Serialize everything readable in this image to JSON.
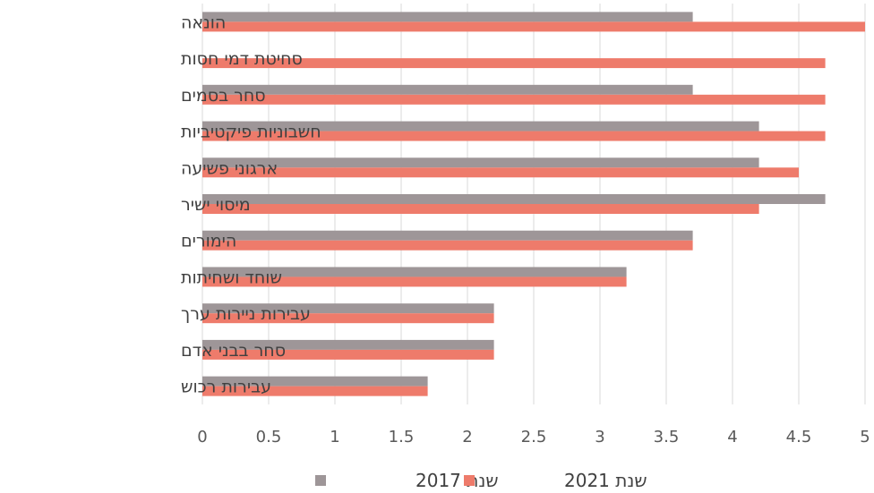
{
  "chart_data": {
    "type": "bar",
    "orientation": "horizontal",
    "categories": [
      "הונאה",
      "סחיטת דמי חסות",
      "סחר בסמים",
      "חשבוניות פיקטיביות",
      "ארגוני פשיעה",
      "מיסוי ישיר",
      "הימורים",
      "שוחד ושחיתות",
      "עבירות ניירות ערך",
      "סחר בבני אדם",
      "עבירות רכוש"
    ],
    "series": [
      {
        "name": "שנת 2017",
        "color": "#9e9698",
        "values": [
          3.7,
          null,
          3.7,
          4.2,
          4.2,
          4.7,
          3.7,
          3.2,
          2.2,
          2.2,
          1.7
        ]
      },
      {
        "name": "שנת 2021",
        "color": "#ee7b6b",
        "values": [
          5.0,
          4.7,
          4.7,
          4.7,
          4.5,
          4.2,
          3.7,
          3.2,
          2.2,
          2.2,
          1.7
        ]
      }
    ],
    "x_ticks": [
      "0",
      "0.5",
      "1",
      "1.5",
      "2",
      "2.5",
      "3",
      "3.5",
      "4",
      "4.5",
      "5"
    ],
    "xlim": [
      0,
      5
    ],
    "grid": true,
    "legend_position": "bottom",
    "legend_order": [
      "שנת 2021",
      "שנת 2017"
    ]
  }
}
